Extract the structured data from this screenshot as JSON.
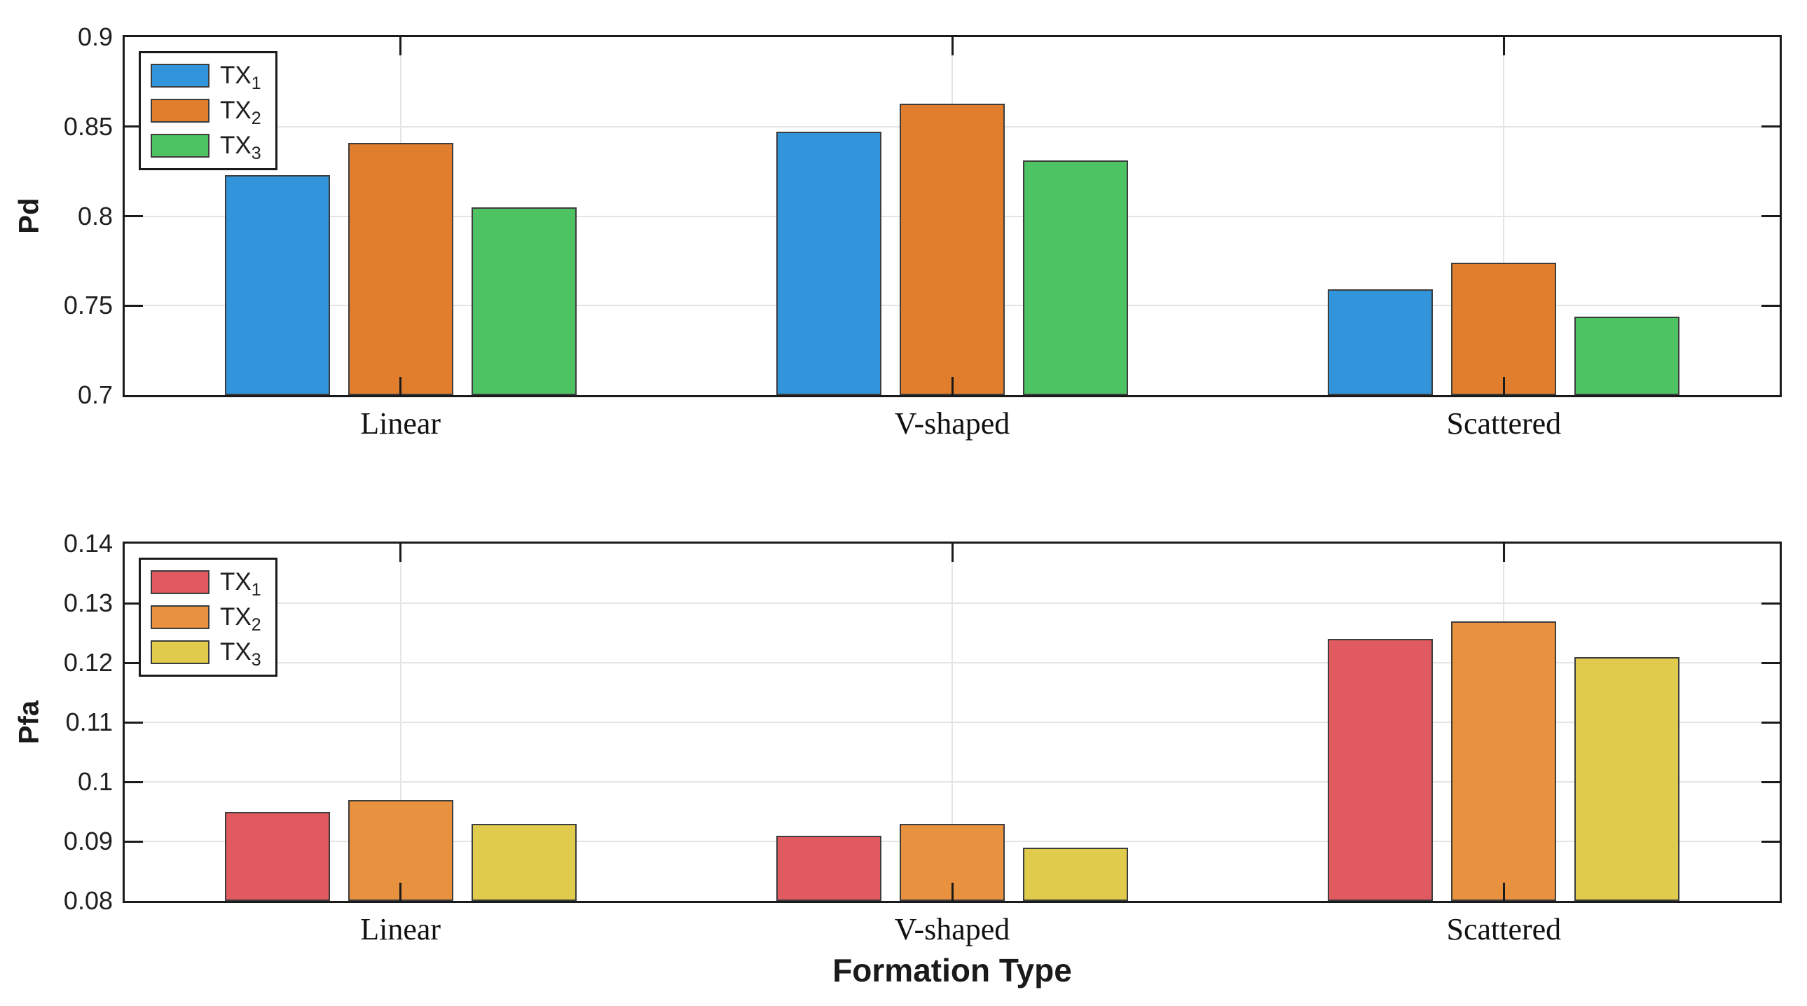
{
  "figure": {
    "background": "#ffffff",
    "text_color": "#1f1f1f",
    "grid_color": "#e4e4e4",
    "spine_color": "#1a1a1a",
    "bar_edge_color": "#3d3d3d"
  },
  "chart_data": [
    {
      "type": "bar",
      "title": "",
      "xlabel": "",
      "ylabel": "Pd",
      "categories": [
        "Linear",
        "V-shaped",
        "Scattered"
      ],
      "series": [
        {
          "name": "TX1",
          "legend_base": "TX",
          "legend_sub": "1",
          "color": "#3294db",
          "values": [
            0.823,
            0.847,
            0.759
          ]
        },
        {
          "name": "TX2",
          "legend_base": "TX",
          "legend_sub": "2",
          "color": "#e07e2d",
          "values": [
            0.841,
            0.863,
            0.774
          ]
        },
        {
          "name": "TX3",
          "legend_base": "TX",
          "legend_sub": "3",
          "color": "#4dc363",
          "values": [
            0.805,
            0.831,
            0.744
          ]
        }
      ],
      "ylim": [
        0.7,
        0.9
      ],
      "yticks": [
        {
          "v": 0.7,
          "label": "0.7"
        },
        {
          "v": 0.75,
          "label": "0.75"
        },
        {
          "v": 0.8,
          "label": "0.8"
        },
        {
          "v": 0.85,
          "label": "0.85"
        },
        {
          "v": 0.9,
          "label": "0.9"
        }
      ],
      "grid": true,
      "legend_position": "top-left"
    },
    {
      "type": "bar",
      "title": "",
      "xlabel": "Formation Type",
      "ylabel": "Pfa",
      "categories": [
        "Linear",
        "V-shaped",
        "Scattered"
      ],
      "series": [
        {
          "name": "TX1",
          "legend_base": "TX",
          "legend_sub": "1",
          "color": "#e15a5f",
          "values": [
            0.095,
            0.091,
            0.124
          ]
        },
        {
          "name": "TX2",
          "legend_base": "TX",
          "legend_sub": "2",
          "color": "#e8923f",
          "values": [
            0.097,
            0.093,
            0.127
          ]
        },
        {
          "name": "TX3",
          "legend_base": "TX",
          "legend_sub": "3",
          "color": "#e0cb4d",
          "values": [
            0.093,
            0.089,
            0.121
          ]
        }
      ],
      "ylim": [
        0.08,
        0.14
      ],
      "yticks": [
        {
          "v": 0.08,
          "label": "0.08"
        },
        {
          "v": 0.09,
          "label": "0.09"
        },
        {
          "v": 0.1,
          "label": "0.1"
        },
        {
          "v": 0.11,
          "label": "0.11"
        },
        {
          "v": 0.12,
          "label": "0.12"
        },
        {
          "v": 0.13,
          "label": "0.13"
        },
        {
          "v": 0.14,
          "label": "0.14"
        }
      ],
      "grid": true,
      "legend_position": "top-left"
    }
  ]
}
